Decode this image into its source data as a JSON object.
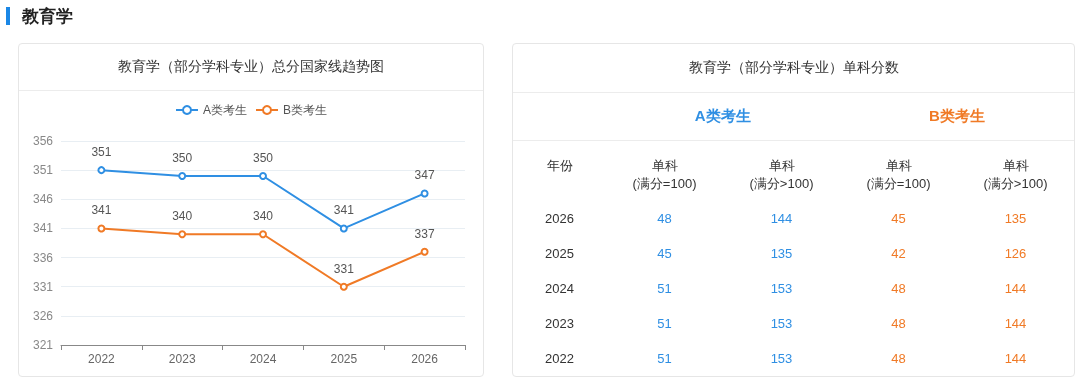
{
  "chart_data": [
    {
      "type": "other",
      "title": "教育学"
    },
    {
      "type": "line",
      "title": "教育学（部分学科专业）总分国家线趋势图",
      "categories": [
        "2022",
        "2023",
        "2024",
        "2025",
        "2026"
      ],
      "series": [
        {
          "name": "A类考生",
          "color": "#2f8fe3",
          "values": [
            351,
            350,
            350,
            341,
            347
          ]
        },
        {
          "name": "B类考生",
          "color": "#f07a26",
          "values": [
            341,
            340,
            340,
            331,
            337
          ]
        }
      ],
      "ylim": [
        321,
        356
      ],
      "yticks": [
        321,
        326,
        331,
        336,
        341,
        346,
        351,
        356
      ],
      "grid": "y",
      "legend": "top",
      "marker": "circle",
      "line_style": "solid",
      "data_labels": true
    },
    {
      "type": "heatmap",
      "title": "教育学（部分学科专业）单科分数",
      "ylabel": "年份",
      "annotations": [
        "A类考生",
        "B类考生"
      ],
      "categories": [
        "单科\n(满分=100)",
        "单科\n(满分>100)",
        "单科\n(满分=100)",
        "单科\n(满分>100)"
      ],
      "colors": [
        "#2f8fe3",
        "#2f8fe3",
        "#f07a26",
        "#f07a26"
      ],
      "y_categories": [
        "2026",
        "2025",
        "2024",
        "2023",
        "2022"
      ],
      "cells": [
        [
          48,
          144,
          45,
          135
        ],
        [
          45,
          135,
          42,
          126
        ],
        [
          51,
          153,
          48,
          144
        ],
        [
          51,
          153,
          48,
          144
        ],
        [
          51,
          153,
          48,
          144
        ]
      ],
      "data_labels": true
    }
  ]
}
